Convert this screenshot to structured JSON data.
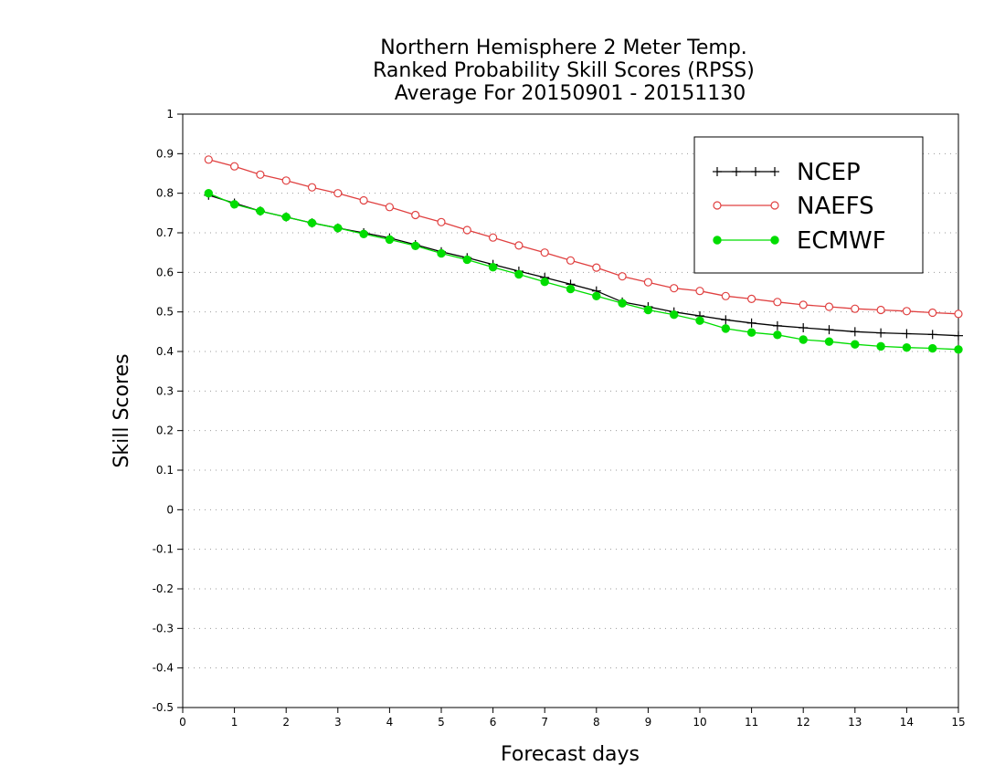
{
  "chart_data": {
    "type": "line",
    "title": [
      "Northern Hemisphere 2 Meter Temp.",
      "Ranked Probability Skill Scores (RPSS)",
      "Average For 20150901 - 20151130"
    ],
    "xlabel": "Forecast days",
    "ylabel": "Skill Scores",
    "xlim": [
      0,
      15
    ],
    "ylim": [
      -0.5,
      1
    ],
    "xticks": [
      "0",
      "1",
      "2",
      "3",
      "4",
      "5",
      "6",
      "7",
      "8",
      "9",
      "10",
      "11",
      "12",
      "13",
      "14",
      "15"
    ],
    "yticks": [
      "1",
      "0.9",
      "0.8",
      "0.7",
      "0.6",
      "0.5",
      "0.4",
      "0.3",
      "0.2",
      "0.1",
      "0",
      "-0.1",
      "-0.2",
      "-0.3",
      "-0.4",
      "-0.5"
    ],
    "grid": true,
    "legend": "top-right",
    "x": [
      0.5,
      1,
      1.5,
      2,
      2.5,
      3,
      3.5,
      4,
      4.5,
      5,
      5.5,
      6,
      6.5,
      7,
      7.5,
      8,
      8.5,
      9,
      9.5,
      10,
      10.5,
      11,
      11.5,
      12,
      12.5,
      13,
      13.5,
      14,
      14.5,
      15
    ],
    "series": [
      {
        "name": "NCEP",
        "color": "#000000",
        "marker": "plus",
        "values": [
          0.795,
          0.775,
          0.755,
          0.74,
          0.725,
          0.712,
          0.7,
          0.687,
          0.67,
          0.652,
          0.637,
          0.62,
          0.603,
          0.587,
          0.57,
          0.553,
          0.525,
          0.513,
          0.5,
          0.49,
          0.48,
          0.472,
          0.465,
          0.46,
          0.455,
          0.45,
          0.447,
          0.445,
          0.443,
          0.44
        ]
      },
      {
        "name": "NAEFS",
        "color": "#e04040",
        "marker": "open-circle",
        "values": [
          0.885,
          0.868,
          0.847,
          0.832,
          0.815,
          0.8,
          0.782,
          0.765,
          0.745,
          0.727,
          0.707,
          0.688,
          0.668,
          0.65,
          0.63,
          0.612,
          0.59,
          0.575,
          0.56,
          0.553,
          0.54,
          0.533,
          0.525,
          0.518,
          0.513,
          0.508,
          0.505,
          0.502,
          0.498,
          0.495
        ]
      },
      {
        "name": "ECMWF",
        "color": "#00dd00",
        "marker": "filled-circle",
        "values": [
          0.8,
          0.772,
          0.755,
          0.74,
          0.725,
          0.712,
          0.697,
          0.683,
          0.667,
          0.648,
          0.632,
          0.613,
          0.595,
          0.576,
          0.558,
          0.54,
          0.522,
          0.505,
          0.493,
          0.478,
          0.458,
          0.448,
          0.442,
          0.43,
          0.425,
          0.418,
          0.413,
          0.41,
          0.408,
          0.405
        ]
      }
    ]
  }
}
